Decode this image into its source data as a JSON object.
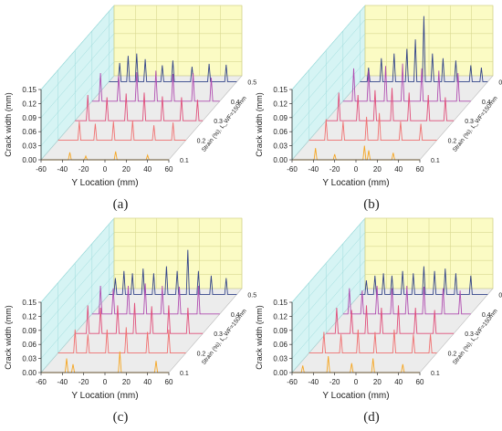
{
  "figure": {
    "panels": [
      {
        "caption": "(a)",
        "ylabel": "Crack width (mm)",
        "xlabel": "Y Location (mm)",
        "zlabel": "Strain (%), L_WF=150mm"
      },
      {
        "caption": "(b)",
        "ylabel": "Crack width (mm)",
        "xlabel": "Y Location (mm)",
        "zlabel": "Strain (%), L_WF=150mm"
      },
      {
        "caption": "(c)",
        "ylabel": "Crack width (mm)",
        "xlabel": "Y Location (mm)",
        "zlabel": "Strain (%), L_WF=150mm"
      },
      {
        "caption": "(d)",
        "ylabel": "Crack width (mm)",
        "xlabel": "Y Location (mm)",
        "zlabel": "Strain (%), L_WF=150mm"
      }
    ]
  },
  "chart_data": [
    {
      "type": "line",
      "panel": "(a)",
      "xlabel": "Y Location (mm)",
      "ylabel": "Crack width (mm)",
      "zlabel": "Strain (%), L_WF=150mm",
      "xlim": [
        -60,
        60
      ],
      "ylim": [
        0,
        0.15
      ],
      "xticks": [
        "-60",
        "-40",
        "-20",
        "0",
        "20",
        "40",
        "60"
      ],
      "yticks": [
        "0.00",
        "0.03",
        "0.06",
        "0.09",
        "0.12",
        "0.15"
      ],
      "strain_levels": [
        "0.1",
        "0.2",
        "0.3",
        "0.4",
        "0.5"
      ],
      "colors": {
        "0.1": "#f5a623",
        "0.2": "#f07070",
        "0.3": "#e04e7a",
        "0.4": "#b04cb0",
        "0.5": "#33448a"
      },
      "series": [
        {
          "name": "0.1",
          "peaks": [
            [
              -33,
              0.016
            ],
            [
              -18,
              0.008
            ],
            [
              10,
              0.018
            ],
            [
              40,
              0.01
            ]
          ]
        },
        {
          "name": "0.2",
          "peaks": [
            [
              -40,
              0.04
            ],
            [
              -25,
              0.035
            ],
            [
              -8,
              0.04
            ],
            [
              10,
              0.042
            ],
            [
              30,
              0.032
            ],
            [
              48,
              0.038
            ]
          ]
        },
        {
          "name": "0.3",
          "peaks": [
            [
              -48,
              0.055
            ],
            [
              -30,
              0.05
            ],
            [
              -12,
              0.058
            ],
            [
              5,
              0.06
            ],
            [
              22,
              0.052
            ],
            [
              40,
              0.05
            ],
            [
              55,
              0.045
            ]
          ]
        },
        {
          "name": "0.4",
          "peaks": [
            [
              -52,
              0.06
            ],
            [
              -35,
              0.055
            ],
            [
              -18,
              0.062
            ],
            [
              0,
              0.065
            ],
            [
              16,
              0.058
            ],
            [
              35,
              0.06
            ],
            [
              52,
              0.05
            ]
          ]
        },
        {
          "name": "0.5",
          "peaks": [
            [
              -50,
              0.04
            ],
            [
              -42,
              0.055
            ],
            [
              -34,
              0.06
            ],
            [
              -26,
              0.048
            ],
            [
              -10,
              0.035
            ],
            [
              0,
              0.045
            ],
            [
              18,
              0.032
            ],
            [
              34,
              0.038
            ],
            [
              50,
              0.036
            ]
          ]
        }
      ]
    },
    {
      "type": "line",
      "panel": "(b)",
      "xlabel": "Y Location (mm)",
      "ylabel": "Crack width (mm)",
      "zlabel": "Strain (%), L_WF=150mm",
      "xlim": [
        -60,
        60
      ],
      "ylim": [
        0,
        0.15
      ],
      "xticks": [
        "-60",
        "-40",
        "-20",
        "0",
        "20",
        "40",
        "60"
      ],
      "yticks": [
        "0.00",
        "0.03",
        "0.06",
        "0.09",
        "0.12",
        "0.15"
      ],
      "strain_levels": [
        "0.1",
        "0.2",
        "0.3",
        "0.4",
        "0.5"
      ],
      "colors": {
        "0.1": "#f5a623",
        "0.2": "#f07070",
        "0.3": "#e04e7a",
        "0.4": "#b04cb0",
        "0.5": "#33448a"
      },
      "series": [
        {
          "name": "0.1",
          "peaks": [
            [
              -38,
              0.025
            ],
            [
              -20,
              0.012
            ],
            [
              8,
              0.03
            ],
            [
              12,
              0.02
            ],
            [
              35,
              0.015
            ]
          ]
        },
        {
          "name": "0.2",
          "peaks": [
            [
              -44,
              0.045
            ],
            [
              -28,
              0.04
            ],
            [
              -6,
              0.05
            ],
            [
              6,
              0.058
            ],
            [
              26,
              0.04
            ],
            [
              45,
              0.035
            ]
          ]
        },
        {
          "name": "0.3",
          "peaks": [
            [
              -48,
              0.06
            ],
            [
              -30,
              0.055
            ],
            [
              -14,
              0.065
            ],
            [
              2,
              0.07
            ],
            [
              18,
              0.06
            ],
            [
              36,
              0.055
            ],
            [
              52,
              0.05
            ]
          ]
        },
        {
          "name": "0.4",
          "peaks": [
            [
              -50,
              0.07
            ],
            [
              -36,
              0.065
            ],
            [
              -20,
              0.075
            ],
            [
              -4,
              0.08
            ],
            [
              14,
              0.07
            ],
            [
              30,
              0.065
            ],
            [
              48,
              0.06
            ]
          ]
        },
        {
          "name": "0.5",
          "peaks": [
            [
              -52,
              0.03
            ],
            [
              -40,
              0.05
            ],
            [
              -28,
              0.06
            ],
            [
              -16,
              0.07
            ],
            [
              -8,
              0.09
            ],
            [
              0,
              0.14
            ],
            [
              8,
              0.06
            ],
            [
              18,
              0.05
            ],
            [
              30,
              0.045
            ],
            [
              44,
              0.035
            ],
            [
              54,
              0.03
            ]
          ]
        }
      ]
    },
    {
      "type": "line",
      "panel": "(c)",
      "xlabel": "Y Location (mm)",
      "ylabel": "Crack width (mm)",
      "zlabel": "Strain (%), L_WF=150mm",
      "xlim": [
        -60,
        60
      ],
      "ylim": [
        0,
        0.15
      ],
      "xticks": [
        "-60",
        "-40",
        "-20",
        "0",
        "20",
        "40",
        "60"
      ],
      "yticks": [
        "0.00",
        "0.03",
        "0.06",
        "0.09",
        "0.12",
        "0.15"
      ],
      "strain_levels": [
        "0.1",
        "0.2",
        "0.3",
        "0.4",
        "0.5"
      ],
      "colors": {
        "0.1": "#f5a623",
        "0.2": "#f07070",
        "0.3": "#e04e7a",
        "0.4": "#b04cb0",
        "0.5": "#33448a"
      },
      "series": [
        {
          "name": "0.1",
          "peaks": [
            [
              -36,
              0.03
            ],
            [
              -30,
              0.018
            ],
            [
              14,
              0.045
            ],
            [
              48,
              0.025
            ]
          ]
        },
        {
          "name": "0.2",
          "peaks": [
            [
              -44,
              0.05
            ],
            [
              -32,
              0.04
            ],
            [
              -14,
              0.05
            ],
            [
              4,
              0.055
            ],
            [
              24,
              0.045
            ],
            [
              44,
              0.05
            ]
          ]
        },
        {
          "name": "0.3",
          "peaks": [
            [
              -48,
              0.06
            ],
            [
              -36,
              0.055
            ],
            [
              -20,
              0.06
            ],
            [
              -4,
              0.065
            ],
            [
              12,
              0.058
            ],
            [
              28,
              0.06
            ],
            [
              46,
              0.055
            ]
          ]
        },
        {
          "name": "0.4",
          "peaks": [
            [
              -52,
              0.06
            ],
            [
              -40,
              0.055
            ],
            [
              -26,
              0.06
            ],
            [
              -10,
              0.065
            ],
            [
              6,
              0.06
            ],
            [
              22,
              0.058
            ],
            [
              40,
              0.06
            ]
          ]
        },
        {
          "name": "0.5",
          "peaks": [
            [
              -54,
              0.035
            ],
            [
              -46,
              0.05
            ],
            [
              -38,
              0.045
            ],
            [
              -28,
              0.055
            ],
            [
              -18,
              0.045
            ],
            [
              -6,
              0.06
            ],
            [
              4,
              0.05
            ],
            [
              14,
              0.095
            ],
            [
              24,
              0.05
            ],
            [
              36,
              0.04
            ],
            [
              50,
              0.035
            ]
          ]
        }
      ]
    },
    {
      "type": "line",
      "panel": "(d)",
      "xlabel": "Y Location (mm)",
      "ylabel": "Crack width (mm)",
      "zlabel": "Strain (%), L_WF=150mm",
      "xlim": [
        -60,
        60
      ],
      "ylim": [
        0,
        0.15
      ],
      "xticks": [
        "-60",
        "-40",
        "-20",
        "0",
        "20",
        "40",
        "60"
      ],
      "yticks": [
        "0.00",
        "0.03",
        "0.06",
        "0.09",
        "0.12",
        "0.15"
      ],
      "strain_levels": [
        "0.1",
        "0.2",
        "0.3",
        "0.4",
        "0.5"
      ],
      "colors": {
        "0.1": "#f5a623",
        "0.2": "#f07070",
        "0.3": "#e04e7a",
        "0.4": "#b04cb0",
        "0.5": "#33448a"
      },
      "series": [
        {
          "name": "0.1",
          "peaks": [
            [
              -50,
              0.015
            ],
            [
              -26,
              0.035
            ],
            [
              -4,
              0.02
            ],
            [
              16,
              0.03
            ],
            [
              44,
              0.018
            ]
          ]
        },
        {
          "name": "0.2",
          "peaks": [
            [
              -46,
              0.045
            ],
            [
              -30,
              0.04
            ],
            [
              -14,
              0.05
            ],
            [
              2,
              0.045
            ],
            [
              20,
              0.05
            ],
            [
              38,
              0.04
            ],
            [
              54,
              0.04
            ]
          ]
        },
        {
          "name": "0.3",
          "peaks": [
            [
              -50,
              0.055
            ],
            [
              -36,
              0.05
            ],
            [
              -22,
              0.06
            ],
            [
              -8,
              0.055
            ],
            [
              8,
              0.06
            ],
            [
              24,
              0.055
            ],
            [
              42,
              0.05
            ]
          ]
        },
        {
          "name": "0.4",
          "peaks": [
            [
              -54,
              0.055
            ],
            [
              -42,
              0.05
            ],
            [
              -28,
              0.06
            ],
            [
              -14,
              0.055
            ],
            [
              0,
              0.06
            ],
            [
              16,
              0.058
            ],
            [
              34,
              0.055
            ],
            [
              50,
              0.05
            ]
          ]
        },
        {
          "name": "0.5",
          "peaks": [
            [
              -54,
              0.03
            ],
            [
              -46,
              0.04
            ],
            [
              -38,
              0.045
            ],
            [
              -30,
              0.04
            ],
            [
              -20,
              0.05
            ],
            [
              -10,
              0.045
            ],
            [
              0,
              0.06
            ],
            [
              10,
              0.05
            ],
            [
              20,
              0.055
            ],
            [
              30,
              0.045
            ],
            [
              44,
              0.04
            ]
          ]
        }
      ]
    }
  ]
}
